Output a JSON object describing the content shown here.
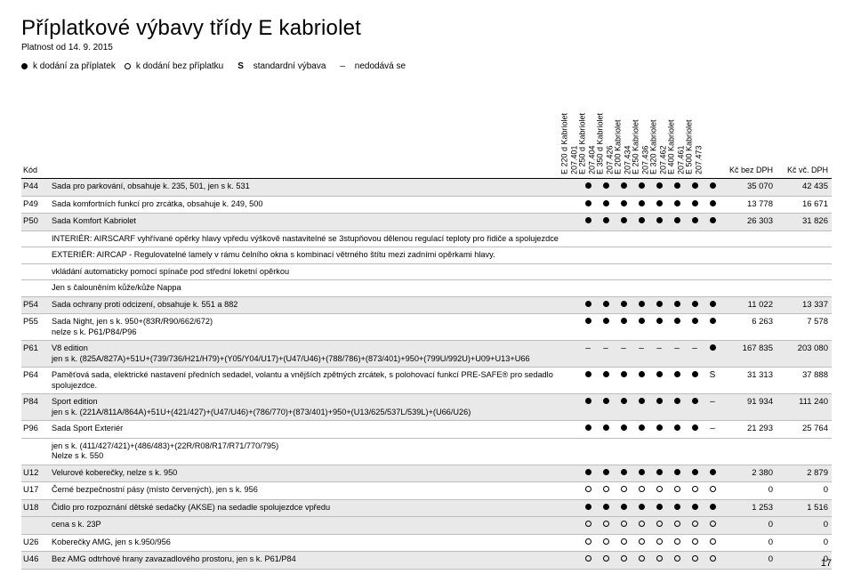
{
  "header": {
    "title": "Příplatkové výbavy třídy E kabriolet",
    "validity": "Platnost od 14. 9. 2015"
  },
  "legend": {
    "solid": "k dodání za příplatek",
    "hollow": "k dodání bez příplatku",
    "s_sym": "S",
    "s_txt": "standardní výbava",
    "dash_sym": "–",
    "dash_txt": "nedodává se"
  },
  "thead": {
    "code": "Kód",
    "price_ex": "Kč bez DPH",
    "price_inc": "Kč vč. DPH"
  },
  "models": [
    {
      "name": "E 220 d Kabriolet",
      "code": "207.401"
    },
    {
      "name": "E 250 d Kabriolet",
      "code": "207.404"
    },
    {
      "name": "E 350 d Kabriolet",
      "code": "207.426"
    },
    {
      "name": "E 200 Kabriolet",
      "code": "207.434"
    },
    {
      "name": "E 250 Kabriolet",
      "code": "207.436"
    },
    {
      "name": "E 320 Kabriolet",
      "code": "207.462"
    },
    {
      "name": "E 400 Kabriolet",
      "code": "207.461"
    },
    {
      "name": "E 500 Kabriolet",
      "code": "207.473"
    }
  ],
  "rows": [
    {
      "code": "P44",
      "hl": true,
      "desc": "Sada pro parkování, obsahuje k. 235, 501, jen s k. 531",
      "m": [
        "●",
        "●",
        "●",
        "●",
        "●",
        "●",
        "●",
        "●"
      ],
      "p1": "35 070",
      "p2": "42 435"
    },
    {
      "code": "P49",
      "desc": "Sada komfortních funkcí pro zrcátka, obsahuje k. 249, 500",
      "m": [
        "●",
        "●",
        "●",
        "●",
        "●",
        "●",
        "●",
        "●"
      ],
      "p1": "13 778",
      "p2": "16 671"
    },
    {
      "code": "P50",
      "hl": true,
      "desc": "Sada Komfort Kabriolet",
      "m": [
        "●",
        "●",
        "●",
        "●",
        "●",
        "●",
        "●",
        "●"
      ],
      "p1": "26 303",
      "p2": "31 826"
    },
    {
      "sub": true,
      "desc": "INTERIÉR: AIRSCARF vyhřívané opěrky hlavy vpředu výškově nastavitelné se 3stupňovou dělenou regulací teploty pro řidiče a spolujezdce"
    },
    {
      "sub": true,
      "desc": "EXTERIÉR: AIRCAP - Regulovatelné lamely v rámu čelního okna s kombinací větrného štítu mezi zadními opěrkami hlavy."
    },
    {
      "sub": true,
      "desc": "vkládání automaticky pomocí spínače pod střední loketní opěrkou"
    },
    {
      "sub": true,
      "desc": "Jen s čalouněním kůže/kůže Nappa"
    },
    {
      "code": "P54",
      "hl": true,
      "desc": "Sada ochrany proti odcizení, obsahuje k. 551 a 882",
      "m": [
        "●",
        "●",
        "●",
        "●",
        "●",
        "●",
        "●",
        "●"
      ],
      "p1": "11 022",
      "p2": "13 337"
    },
    {
      "code": "P55",
      "desc": "Sada Night, jen s k. 950+(83R/R90/662/672)\nnelze s k. P61/P84/P96",
      "m": [
        "●",
        "●",
        "●",
        "●",
        "●",
        "●",
        "●",
        "●"
      ],
      "p1": "6 263",
      "p2": "7 578"
    },
    {
      "code": "P61",
      "hl": true,
      "desc": "V8 edition\njen s k. (825A/827A)+51U+(739/736/H21/H79)+(Y05/Y04/U17)+(U47/U46)+(788/786)+(873/401)+950+(799U/992U)+U09+U13+U66",
      "m": [
        "–",
        "–",
        "–",
        "–",
        "–",
        "–",
        "–",
        "●"
      ],
      "p1": "167 835",
      "p2": "203 080"
    },
    {
      "code": "P64",
      "desc": "Paměťová sada, elektrické nastavení předních sedadel, volantu a vnějších zpětných zrcátek, s polohovací funkcí PRE-SAFE® pro sedadlo spolujezdce.",
      "m": [
        "●",
        "●",
        "●",
        "●",
        "●",
        "●",
        "●",
        "S"
      ],
      "p1": "31 313",
      "p2": "37 888"
    },
    {
      "code": "P84",
      "hl": true,
      "desc": "Sport edition\njen s k. (221A/811A/864A)+51U+(421/427)+(U47/U46)+(786/770)+(873/401)+950+(U13/625/537L/539L)+(U66/U26)",
      "m": [
        "●",
        "●",
        "●",
        "●",
        "●",
        "●",
        "●",
        "–"
      ],
      "p1": "91 934",
      "p2": "111 240"
    },
    {
      "code": "P96",
      "desc": "Sada Sport Exteriér",
      "m": [
        "●",
        "●",
        "●",
        "●",
        "●",
        "●",
        "●",
        "–"
      ],
      "p1": "21 293",
      "p2": "25 764"
    },
    {
      "sub": true,
      "desc": "jen s k. (411/427/421)+(486/483)+(22R/R08/R17/R71/770/795)\nNelze s k. 550"
    },
    {
      "code": "U12",
      "hl": true,
      "desc": "Velurové koberečky, nelze s k. 950",
      "m": [
        "●",
        "●",
        "●",
        "●",
        "●",
        "●",
        "●",
        "●"
      ],
      "p1": "2 380",
      "p2": "2 879"
    },
    {
      "code": "U17",
      "desc": "Černé bezpečnostní pásy (místo červených), jen s k. 956",
      "m": [
        "○",
        "○",
        "○",
        "○",
        "○",
        "○",
        "○",
        "○"
      ],
      "p1": "0",
      "p2": "0"
    },
    {
      "code": "U18",
      "hl": true,
      "desc": "Čidlo pro rozpoznání dětské sedačky (AKSE) na sedadle spolujezdce vpředu",
      "m": [
        "●",
        "●",
        "●",
        "●",
        "●",
        "●",
        "●",
        "●"
      ],
      "p1": "1 253",
      "p2": "1 516"
    },
    {
      "sub": true,
      "hl": true,
      "desc": "cena s k. 23P",
      "m": [
        "○",
        "○",
        "○",
        "○",
        "○",
        "○",
        "○",
        "○"
      ],
      "p1": "0",
      "p2": "0"
    },
    {
      "code": "U26",
      "desc": "Koberečky AMG, jen s k.950/956",
      "m": [
        "○",
        "○",
        "○",
        "○",
        "○",
        "○",
        "○",
        "○"
      ],
      "p1": "0",
      "p2": "0"
    },
    {
      "code": "U46",
      "hl": true,
      "desc": "Bez AMG odtrhové hrany zavazadlového prostoru, jen s k. P61/P84",
      "m": [
        "○",
        "○",
        "○",
        "○",
        "○",
        "○",
        "○",
        "○"
      ],
      "p1": "0",
      "p2": "0"
    }
  ],
  "footer": {
    "page": "17"
  },
  "style": {
    "hl_bg": "#e9e9e9",
    "row_border": "#bdbdbd",
    "head_border": "#000000"
  }
}
